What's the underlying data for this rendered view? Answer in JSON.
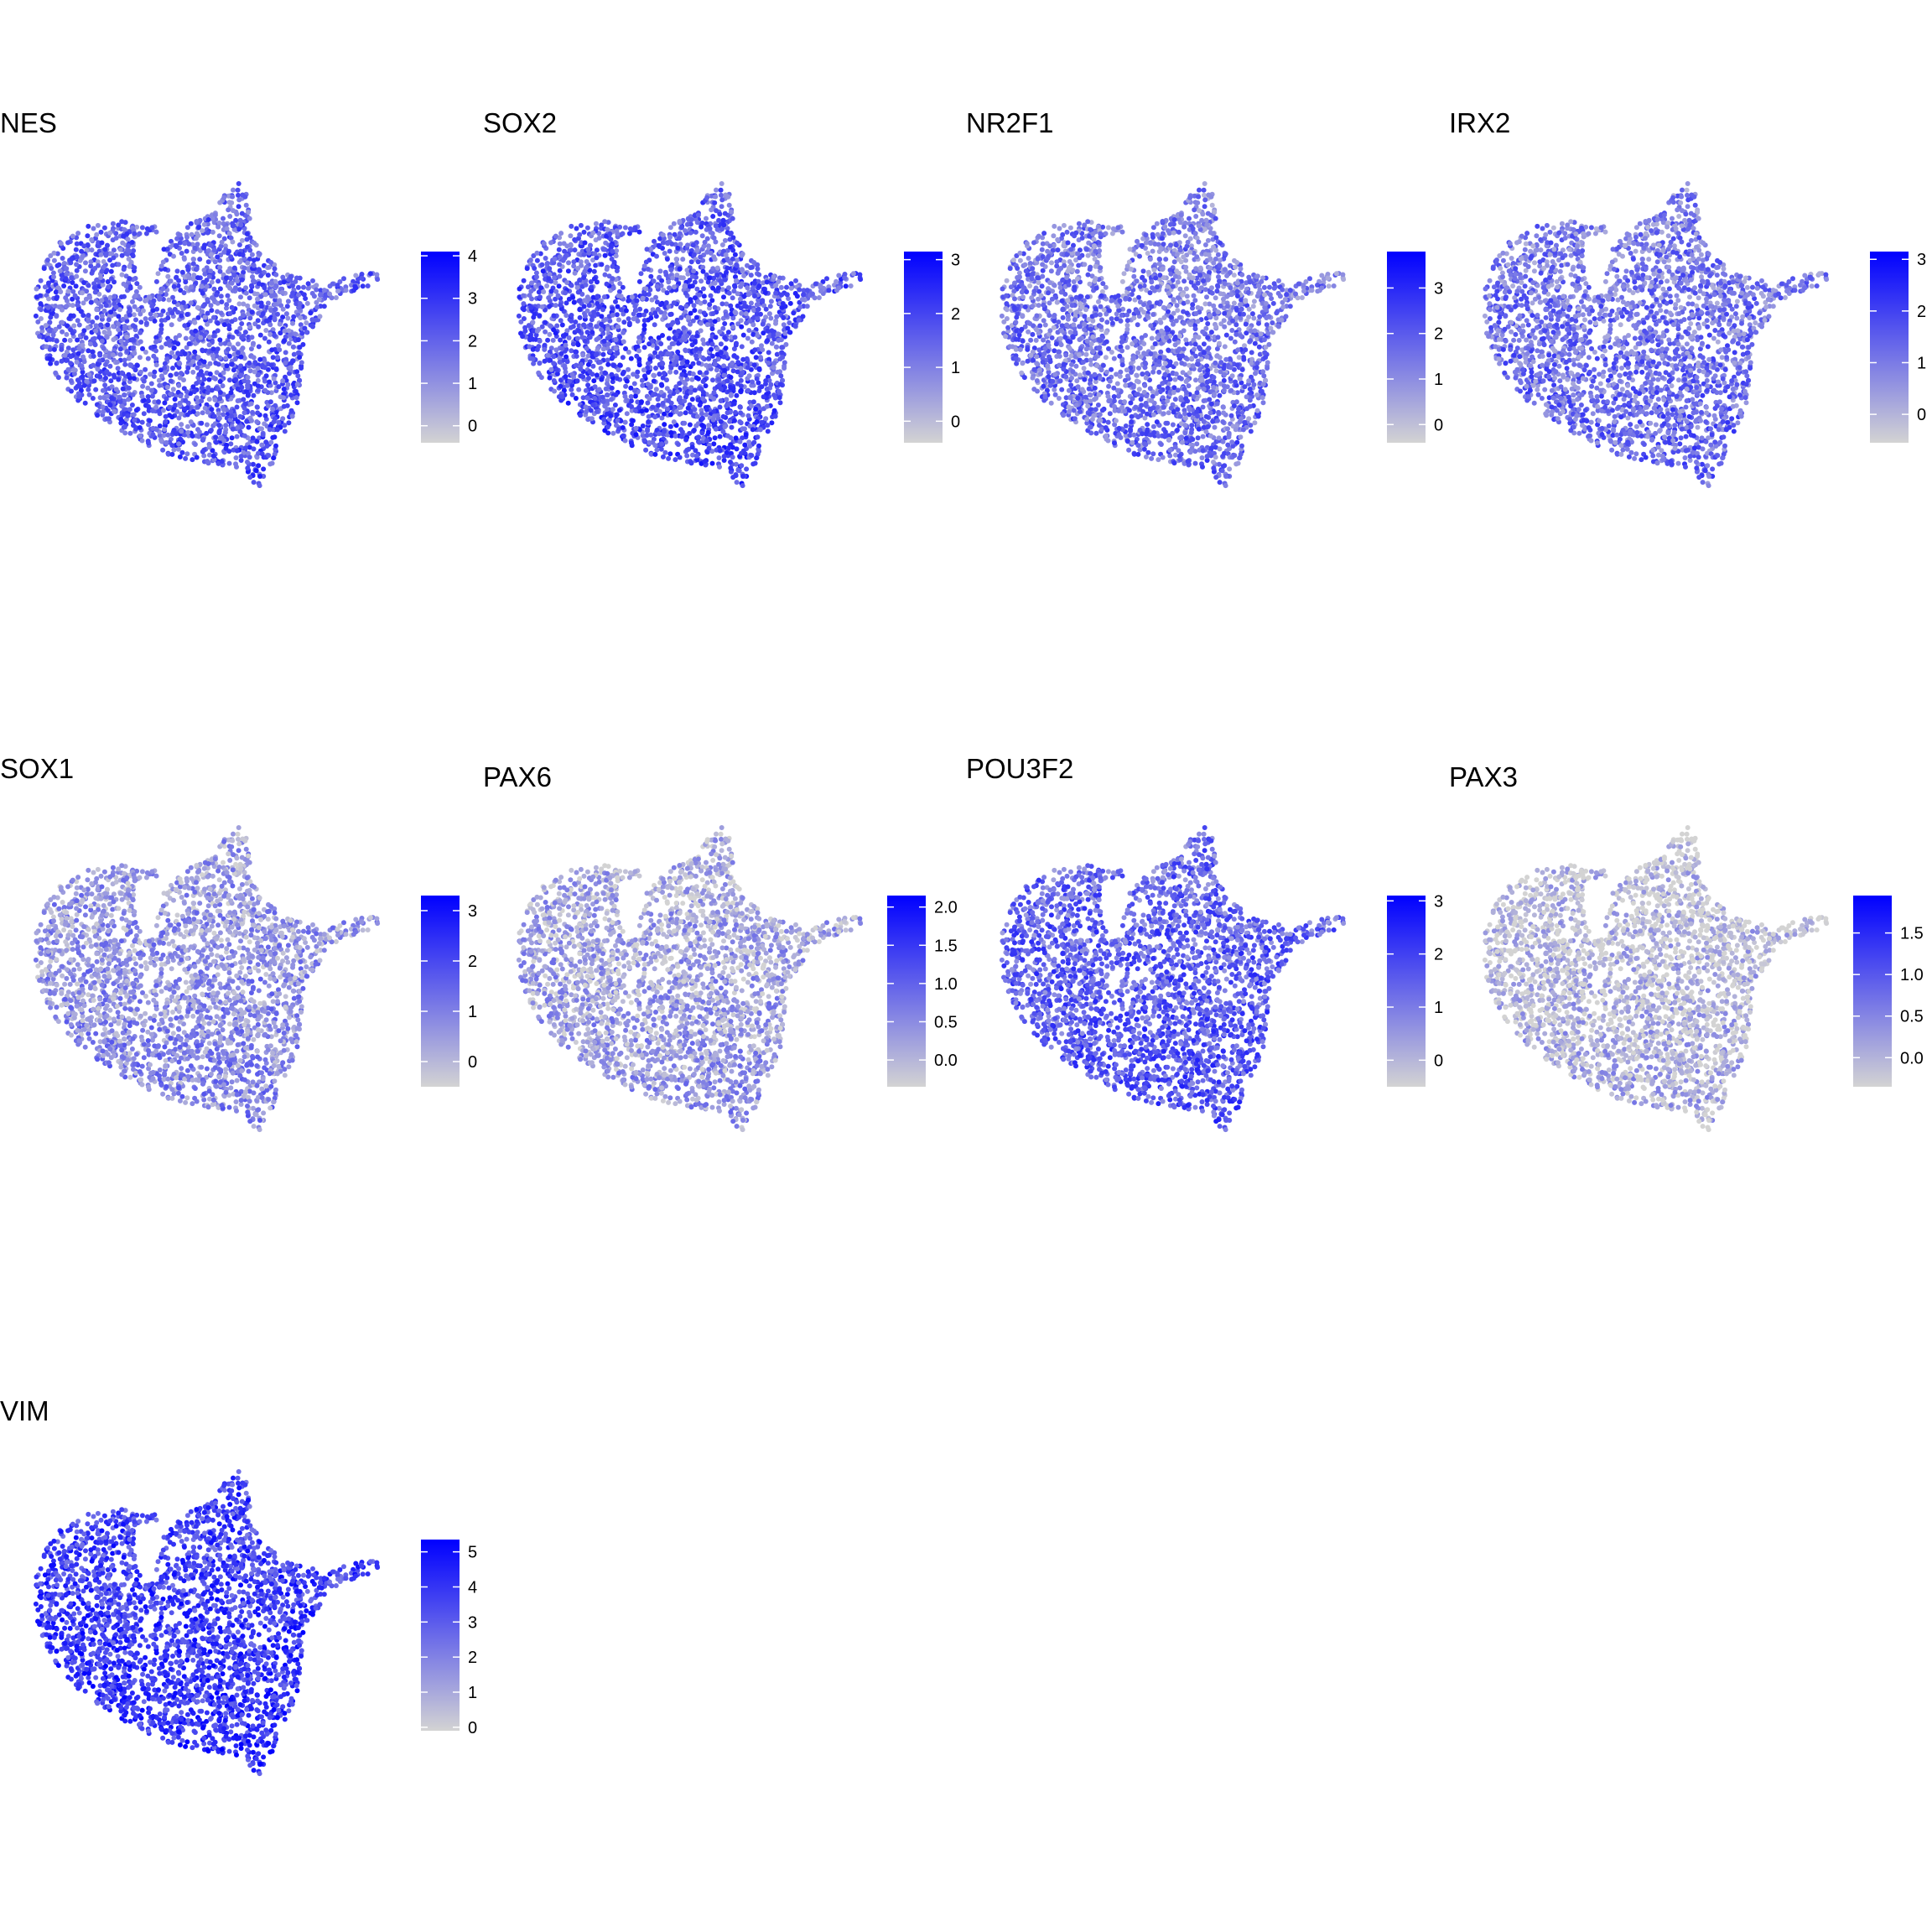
{
  "colors": {
    "low": "#d3d3d3",
    "high": "#0000ff"
  },
  "chart_data": [
    {
      "type": "scatter",
      "title": "NES",
      "legend_ticks": [
        "0",
        "1",
        "2",
        "3",
        "4"
      ],
      "legend_values": [
        0,
        1,
        2,
        3,
        4
      ],
      "range": [
        -0.4,
        4.1
      ],
      "expression_level": 0.55
    },
    {
      "type": "scatter",
      "title": "SOX2",
      "legend_ticks": [
        "0",
        "1",
        "2",
        "3"
      ],
      "legend_values": [
        0,
        1,
        2,
        3
      ],
      "range": [
        -0.4,
        3.15
      ],
      "expression_level": 0.6
    },
    {
      "type": "scatter",
      "title": "NR2F1",
      "legend_ticks": [
        "0",
        "1",
        "2",
        "3"
      ],
      "legend_values": [
        0,
        1,
        2,
        3
      ],
      "range": [
        -0.4,
        3.8
      ],
      "expression_level": 0.45
    },
    {
      "type": "scatter",
      "title": "IRX2",
      "legend_ticks": [
        "0",
        "1",
        "2",
        "3"
      ],
      "legend_values": [
        0,
        1,
        2,
        3
      ],
      "range": [
        -0.55,
        3.15
      ],
      "expression_level": 0.45
    },
    {
      "type": "scatter",
      "title": "SOX1",
      "legend_ticks": [
        "0",
        "1",
        "2",
        "3"
      ],
      "legend_values": [
        0,
        1,
        2,
        3
      ],
      "range": [
        -0.5,
        3.3
      ],
      "expression_level": 0.3
    },
    {
      "type": "scatter",
      "title": "PAX6",
      "legend_ticks": [
        "0.0",
        "0.5",
        "1.0",
        "1.5",
        "2.0"
      ],
      "legend_values": [
        0,
        0.5,
        1,
        1.5,
        2
      ],
      "range": [
        -0.35,
        2.15
      ],
      "expression_level": 0.22
    },
    {
      "type": "scatter",
      "title": "POU3F2",
      "legend_ticks": [
        "0",
        "1",
        "2",
        "3"
      ],
      "legend_values": [
        0,
        1,
        2,
        3
      ],
      "range": [
        -0.5,
        3.1
      ],
      "expression_level": 0.55
    },
    {
      "type": "scatter",
      "title": "PAX3",
      "legend_ticks": [
        "0.0",
        "0.5",
        "1.0",
        "1.5"
      ],
      "legend_values": [
        0,
        0.5,
        1,
        1.5
      ],
      "range": [
        -0.35,
        1.95
      ],
      "expression_level": 0.12
    },
    {
      "type": "scatter",
      "title": "VIM",
      "legend_ticks": [
        "0",
        "1",
        "2",
        "3",
        "4",
        "5"
      ],
      "legend_values": [
        0,
        1,
        2,
        3,
        4,
        5
      ],
      "range": [
        -0.1,
        5.35
      ],
      "expression_level": 0.72
    }
  ]
}
